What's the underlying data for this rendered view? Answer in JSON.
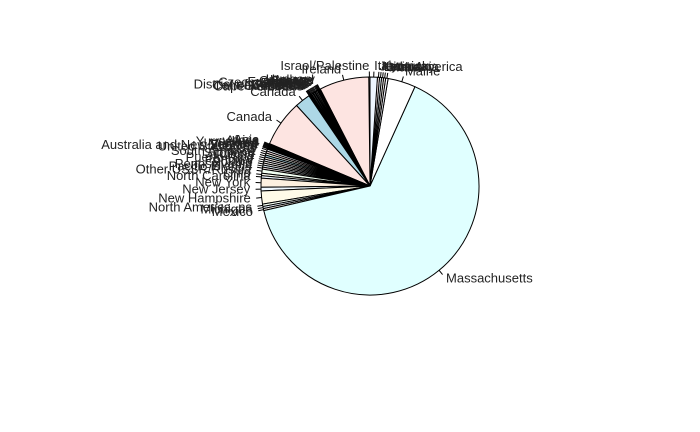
{
  "chart_data": {
    "type": "pie",
    "title": "",
    "start_angle_deg": 90,
    "direction": "counterclockwise",
    "slices": [
      {
        "label": "Israel/Palestine",
        "value": 0.15,
        "color": "#ffffff"
      },
      {
        "label": "Ireland",
        "value": 6.1,
        "color": "#fde4e1"
      },
      {
        "label": "Hungary",
        "value": 0.1,
        "color": "#f5f5f5"
      },
      {
        "label": "Holland",
        "value": 0.1,
        "color": "#e8f3f8"
      },
      {
        "label": "Greece",
        "value": 0.1,
        "color": "#fff0f5"
      },
      {
        "label": "Germany",
        "value": 0.1,
        "color": "#f0fff0"
      },
      {
        "label": "France",
        "value": 0.15,
        "color": "#fffff0"
      },
      {
        "label": "Europe, ns",
        "value": 0.15,
        "color": "#eaf4ff"
      },
      {
        "label": "Czechoslovakia",
        "value": 0.1,
        "color": "#fff5ee"
      },
      {
        "label": "England",
        "value": 0.15,
        "color": "#f0f8ff"
      },
      {
        "label": "Cuba",
        "value": 0.1,
        "color": "#ffe4e1"
      },
      {
        "label": "District of Columbia",
        "value": 0.15,
        "color": "#f5fffa"
      },
      {
        "label": "Colombia",
        "value": 0.1,
        "color": "#e6f2f8"
      },
      {
        "label": "Central America",
        "value": 0.1,
        "color": "#fdf5e6"
      },
      {
        "label": "Caribbean",
        "value": 0.1,
        "color": "#f8f8ff"
      },
      {
        "label": "Cape Verdeans",
        "value": 0.1,
        "color": "#fffaf0"
      },
      {
        "label": "Canada",
        "value": 1.9,
        "color": "#add8e6"
      },
      {
        "label": "Canada",
        "value": 5.7,
        "color": "#fde4e1"
      },
      {
        "label": "Asia",
        "value": 0.1,
        "color": "#f0f0f0"
      },
      {
        "label": "Africa",
        "value": 0.1,
        "color": "#e8f4fa"
      },
      {
        "label": "Yugoslavia",
        "value": 0.1,
        "color": "#fff0f0"
      },
      {
        "label": "Wales",
        "value": 0.1,
        "color": "#f2fff2"
      },
      {
        "label": "Vietnam",
        "value": 0.1,
        "color": "#fffff5"
      },
      {
        "label": "Vermont",
        "value": 0.1,
        "color": "#eef6ff"
      },
      {
        "label": "Australia and New Zealand",
        "value": 0.1,
        "color": "#fff5f0"
      },
      {
        "label": "United States, ns",
        "value": 0.25,
        "color": "#f0f8ff"
      },
      {
        "label": "Texas",
        "value": 0.25,
        "color": "#ffe8e8"
      },
      {
        "label": "South America",
        "value": 0.25,
        "color": "#f5fff5"
      },
      {
        "label": "Scotland",
        "value": 0.25,
        "color": "#add8e6"
      },
      {
        "label": "Russia",
        "value": 0.25,
        "color": "#fff8f0"
      },
      {
        "label": "Puerto Rico",
        "value": 0.25,
        "color": "#f8f8ff"
      },
      {
        "label": "Portugal",
        "value": 0.25,
        "color": "#fffaf5"
      },
      {
        "label": "Poland",
        "value": 0.25,
        "color": "#f0f0f0"
      },
      {
        "label": "Pennsylvania",
        "value": 0.25,
        "color": "#e8f4fa"
      },
      {
        "label": "Pacific Islands",
        "value": 0.25,
        "color": "#fff0f0"
      },
      {
        "label": "Other USSR/Russia",
        "value": 0.5,
        "color": "#f2fff2"
      },
      {
        "label": "Ohio",
        "value": 0.3,
        "color": "#fffff5"
      },
      {
        "label": "North Carolina",
        "value": 0.3,
        "color": "#eef6ff"
      },
      {
        "label": "New York",
        "value": 1.1,
        "color": "#fdf0e0"
      },
      {
        "label": "New Jersey",
        "value": 0.45,
        "color": "#f0f8ff"
      },
      {
        "label": "New Hampshire",
        "value": 1.6,
        "color": "#fffbe8"
      },
      {
        "label": "North America, ns",
        "value": 0.3,
        "color": "#f5fff5"
      },
      {
        "label": "Michigan",
        "value": 0.25,
        "color": "#eef6ff"
      },
      {
        "label": "Mexico",
        "value": 0.25,
        "color": "#fff8f0"
      },
      {
        "label": "Massachusetts",
        "value": 53.5,
        "color": "#e0ffff"
      },
      {
        "label": "Maine",
        "value": 3.4,
        "color": "#ffffff"
      },
      {
        "label": "Malta",
        "value": 0.3,
        "color": "#f8f8ff"
      },
      {
        "label": "Lithuania",
        "value": 0.25,
        "color": "#fffaf5"
      },
      {
        "label": "Latin America",
        "value": 0.25,
        "color": "#f0f0f0"
      },
      {
        "label": "Kentucky",
        "value": 0.25,
        "color": "#e8f4fa"
      },
      {
        "label": "Jamaica",
        "value": 0.25,
        "color": "#fff0f0"
      },
      {
        "label": "Italy",
        "value": 0.9,
        "color": "#eef6ff"
      }
    ]
  }
}
